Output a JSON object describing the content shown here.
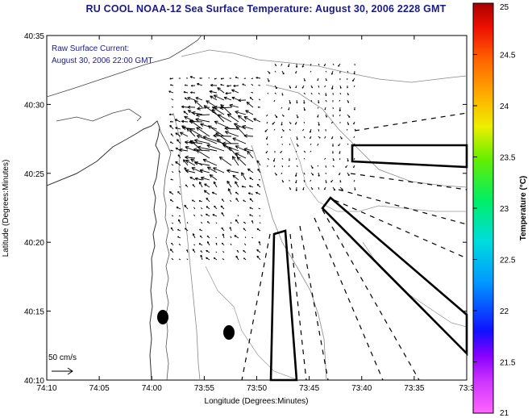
{
  "header": {
    "title": "RU COOL  NOAA-12  Sea Surface Temperature:  August 30, 2006 2228 GMT"
  },
  "annotations": {
    "raw_current_label": "Raw Surface Current:",
    "raw_current_time": "August 30, 2006 22:00 GMT",
    "scale_label": "50 cm/s"
  },
  "axes": {
    "xlabel": "Longitude (Degrees:Minutes)",
    "ylabel": "Latitude (Degrees:Minutes)",
    "xticks": [
      "74:10",
      "74:05",
      "74:00",
      "73:55",
      "73:50",
      "73:45",
      "73:40",
      "73:35",
      "73:3"
    ],
    "yticks": [
      "40:35",
      "40:30",
      "40:25",
      "40:20",
      "40:15",
      "40:10"
    ]
  },
  "colorbar": {
    "label": "Temperature (°C)",
    "ticks": [
      "25",
      "24.5",
      "24",
      "23.5",
      "23",
      "22.5",
      "22",
      "21.5",
      "21"
    ],
    "min": 21,
    "max": 25
  }
}
